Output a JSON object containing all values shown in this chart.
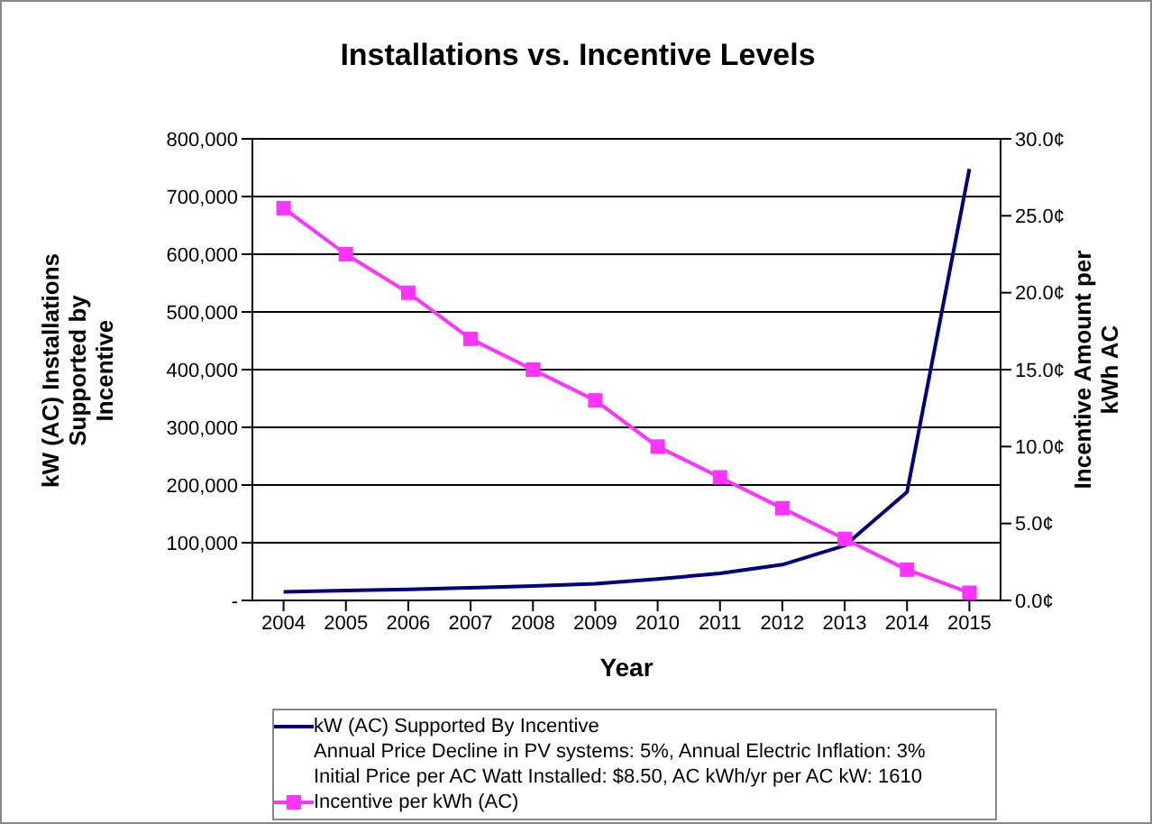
{
  "chart_data": {
    "type": "line",
    "title": "Installations vs. Incentive Levels",
    "xlabel": "Year",
    "ylabel": "kW (AC) Installations\nSupported by\nIncentive",
    "y2label": "Incentive Amount per\nkWh AC",
    "categories": [
      "2004",
      "2005",
      "2006",
      "2007",
      "2008",
      "2009",
      "2010",
      "2011",
      "2012",
      "2013",
      "2014",
      "2015"
    ],
    "series": [
      {
        "name": "kW (AC) Supported By Incentive",
        "color": "#000080",
        "marker": "none",
        "values": [
          15000,
          17000,
          19000,
          22000,
          25000,
          29000,
          37000,
          47000,
          62000,
          95000,
          188000,
          748000
        ]
      },
      {
        "name": "Incentive per kWh (AC)",
        "color": "#ff33ff",
        "marker": "square",
        "axis": "y2",
        "values": [
          25.5,
          22.5,
          20,
          17,
          15,
          13,
          10,
          8,
          6,
          4,
          2,
          0.5
        ]
      }
    ],
    "ylim": [
      0,
      800000
    ],
    "yticks": [
      {
        "value": 0,
        "label": "-"
      },
      {
        "value": 100000,
        "label": "100,000"
      },
      {
        "value": 200000,
        "label": "200,000"
      },
      {
        "value": 300000,
        "label": "300,000"
      },
      {
        "value": 400000,
        "label": "400,000"
      },
      {
        "value": 500000,
        "label": "500,000"
      },
      {
        "value": 600000,
        "label": "600,000"
      },
      {
        "value": 700000,
        "label": "700,000"
      },
      {
        "value": 800000,
        "label": "800,000"
      }
    ],
    "y2lim": [
      0,
      30
    ],
    "y2ticks": [
      {
        "value": 0,
        "label": "0.0¢"
      },
      {
        "value": 5,
        "label": "5.0¢"
      },
      {
        "value": 10,
        "label": "10.0¢"
      },
      {
        "value": 15,
        "label": "15.0¢"
      },
      {
        "value": 20,
        "label": "20.0¢"
      },
      {
        "value": 25,
        "label": "25.0¢"
      },
      {
        "value": 30,
        "label": "30.0¢"
      }
    ],
    "grid": "y",
    "legend": "bottom",
    "line_style": "solid",
    "annotations": [
      "Annual Price Decline in PV systems: 5%, Annual Electric Inflation: 3%",
      "Initial Price per AC Watt Installed: $8.50, AC kWh/yr per AC kW: 1610"
    ]
  }
}
